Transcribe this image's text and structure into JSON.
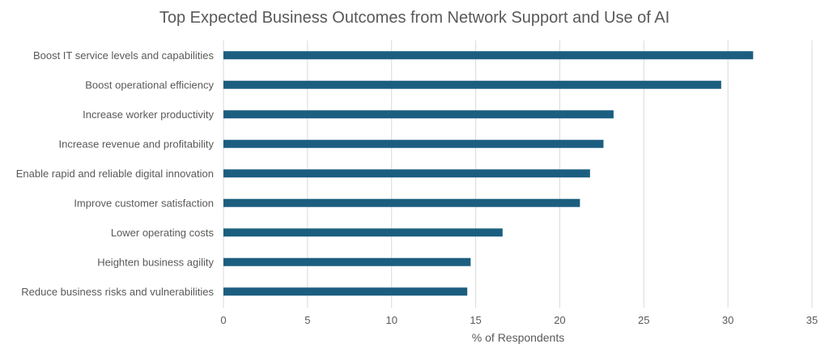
{
  "chart_data": {
    "type": "bar",
    "orientation": "horizontal",
    "title": "Top Expected Business Outcomes from Network Support and Use of AI",
    "xlabel": "% of Respondents",
    "ylabel": "",
    "xlim": [
      0,
      35
    ],
    "xticks": [
      0,
      5,
      10,
      15,
      20,
      25,
      30,
      35
    ],
    "grid": "vertical",
    "legend": "none",
    "bar_color": "#1c5e80",
    "categories": [
      "Boost IT service levels and capabilities",
      "Boost operational efficiency",
      "Increase worker productivity",
      "Increase revenue and profitability",
      "Enable rapid and reliable digital innovation",
      "Improve customer satisfaction",
      "Lower operating costs",
      "Heighten business agility",
      "Reduce business risks and vulnerabilities"
    ],
    "values": [
      31.5,
      29.6,
      23.2,
      22.6,
      21.8,
      21.2,
      16.6,
      14.7,
      14.5
    ]
  }
}
